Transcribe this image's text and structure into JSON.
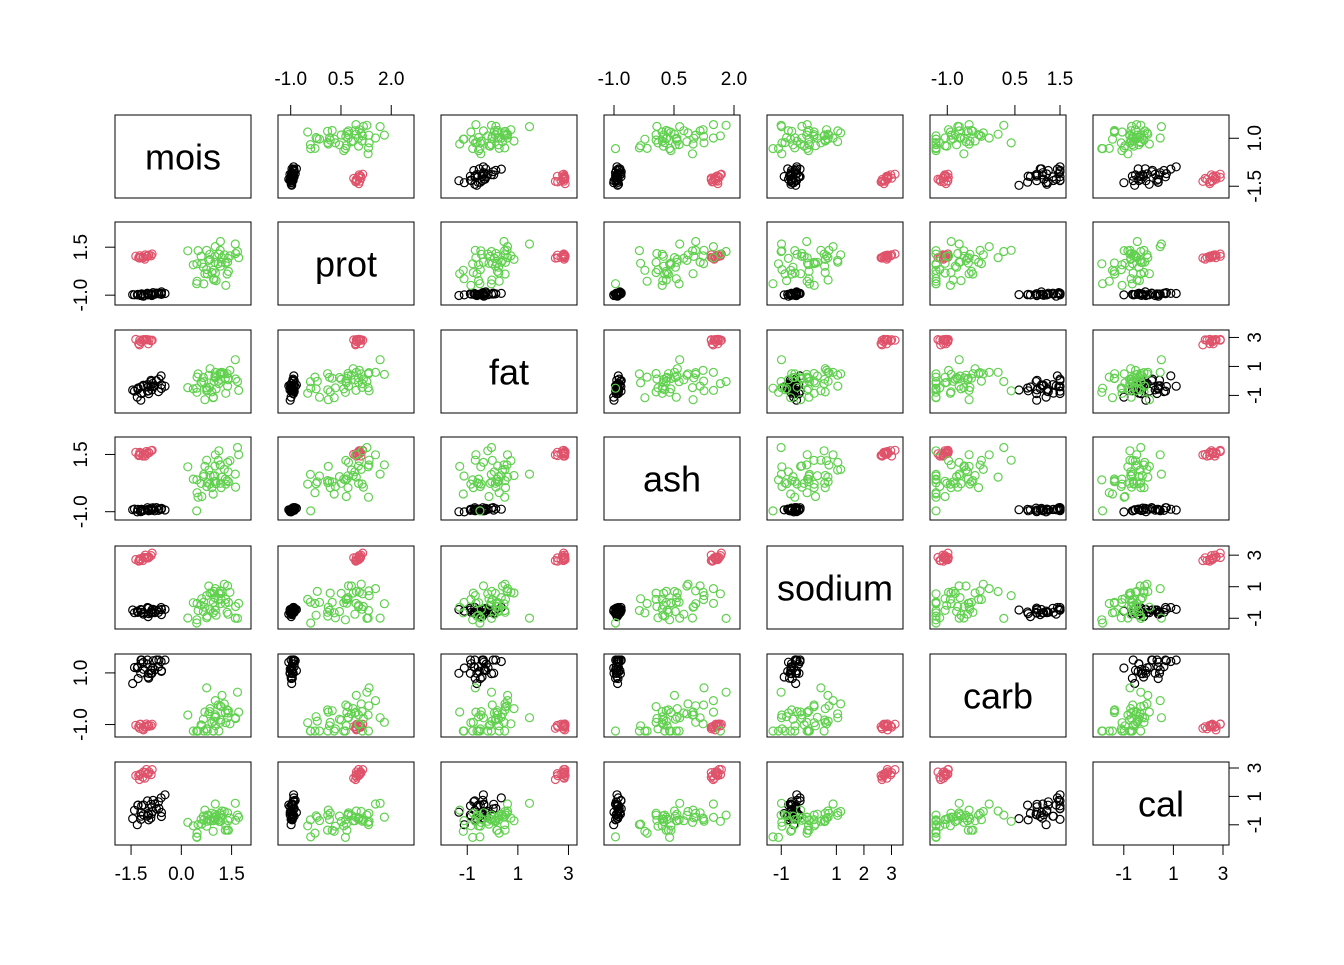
{
  "chart_data": {
    "type": "scatter",
    "variables": [
      "mois",
      "prot",
      "fat",
      "ash",
      "sodium",
      "carb",
      "cal"
    ],
    "ranges": {
      "mois": [
        -1.8,
        1.9
      ],
      "prot": [
        -1.2,
        2.5
      ],
      "fat": [
        -1.8,
        3.1
      ],
      "ash": [
        -1.1,
        2.0
      ],
      "sodium": [
        -1.3,
        3.2
      ],
      "carb": [
        -1.25,
        1.5
      ],
      "cal": [
        -2.0,
        3.0
      ]
    },
    "tick_labels": {
      "mois": [
        "-1.5",
        "0.0",
        "1.5"
      ],
      "prot": [
        "-1.0",
        "0.5",
        "2.0"
      ],
      "fat": [
        "-1",
        "1",
        "3"
      ],
      "ash": [
        "-1.0",
        "0.5",
        "2.0"
      ],
      "sodium": [
        "-1",
        "1",
        "2",
        "3"
      ],
      "carb": [
        "-1.0",
        "0.5",
        "1.5"
      ],
      "cal": [
        "-1",
        "1",
        "3"
      ]
    },
    "side_tick_labels": {
      "mois": [
        "-1.5",
        "1.0"
      ],
      "prot": [
        "-1.0",
        "1.5"
      ],
      "fat": [
        "-1",
        "1",
        "3"
      ],
      "ash": [
        "-1.0",
        "1.5"
      ],
      "sodium": [
        "-1",
        "1",
        "3"
      ],
      "carb": [
        "-1.0",
        "1.0"
      ],
      "cal": [
        "-1",
        "1",
        "3"
      ]
    },
    "groups": [
      {
        "color": "#000000",
        "count": 30,
        "means": {
          "mois": -1.0,
          "prot": -0.95,
          "fat": -0.55,
          "ash": -0.9,
          "sodium": -0.55,
          "carb": 1.2,
          "cal": 0.0
        },
        "spread": {
          "mois": 0.25,
          "prot": 0.05,
          "fat": 0.4,
          "ash": 0.05,
          "sodium": 0.15,
          "carb": 0.3,
          "cal": 0.55
        }
      },
      {
        "color": "#DF536B",
        "count": 15,
        "means": {
          "mois": -1.1,
          "prot": 1.0,
          "fat": 2.8,
          "ash": 1.55,
          "sodium": 2.85,
          "carb": -1.05,
          "cal": 2.6
        },
        "spread": {
          "mois": 0.2,
          "prot": 0.1,
          "fat": 0.15,
          "ash": 0.07,
          "sodium": 0.15,
          "carb": 0.05,
          "cal": 0.2
        }
      },
      {
        "color": "#61D04F",
        "count": 45,
        "means": {
          "mois": 1.0,
          "prot": 0.6,
          "fat": 0.0,
          "ash": 0.5,
          "sodium": 0.0,
          "carb": -0.65,
          "cal": -0.6
        },
        "spread": {
          "mois": 0.35,
          "prot": 0.6,
          "fat": 0.5,
          "ash": 0.6,
          "sodium": 0.6,
          "carb": 0.5,
          "cal": 0.5
        }
      }
    ]
  }
}
